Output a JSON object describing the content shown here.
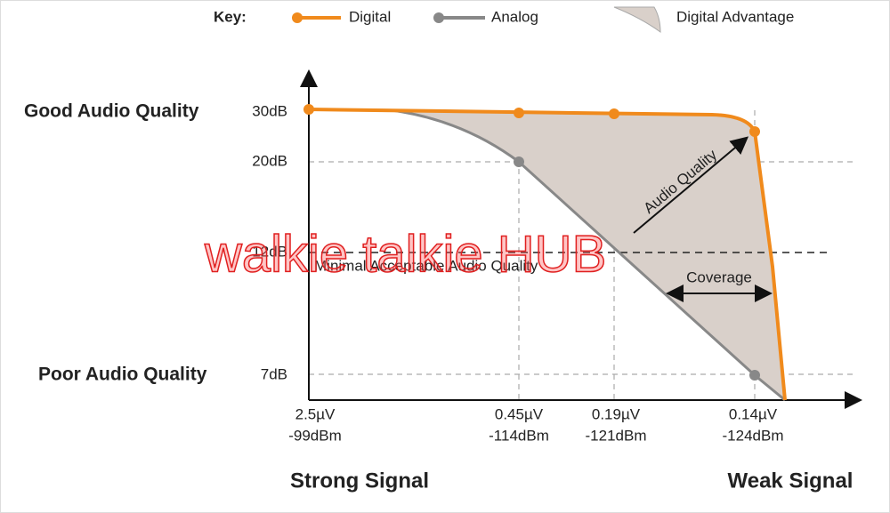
{
  "key": {
    "title": "Key:",
    "items": [
      "Digital",
      "Analog",
      "Digital Advantage"
    ]
  },
  "quality_labels": {
    "good": "Good Audio Quality",
    "poor": "Poor Audio Quality"
  },
  "y_labels": [
    "30dB",
    "20dB",
    "12dB",
    "7dB"
  ],
  "x_labels": [
    {
      "voltage": "2.5µV",
      "dbm": "-99dBm"
    },
    {
      "voltage": "0.45µV",
      "dbm": "-114dBm"
    },
    {
      "voltage": "0.19µV",
      "dbm": "-121dBm"
    },
    {
      "voltage": "0.14µV",
      "dbm": "-124dBm"
    }
  ],
  "annotations": {
    "threshold": "Minimal Acceptable Audio Quality",
    "audio_quality": "Audio Quality",
    "coverage": "Coverage"
  },
  "footer": {
    "left": "Strong Signal",
    "right": "Weak Signal"
  },
  "watermark": "walkie talkie HUB"
}
